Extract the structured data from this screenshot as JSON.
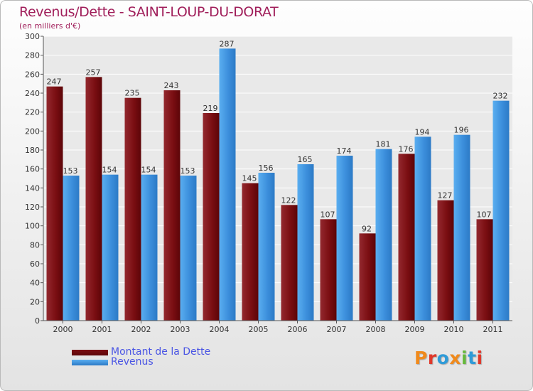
{
  "title": "Revenus/Dette - SAINT-LOUP-DU-DORAT",
  "subtitle": "(en milliers d'€)",
  "logo": {
    "text": "Proxiti",
    "colors": [
      "#f08a1c",
      "#e0382a",
      "#2f9bd8",
      "#f08a1c",
      "#65b93b",
      "#2f9bd8",
      "#e0382a"
    ]
  },
  "colors": {
    "dette": "#7b0e12",
    "revenus": "#3c8fdc",
    "title": "#a01e5a",
    "legend_text": "#4a55e4"
  },
  "chart_data": {
    "type": "bar",
    "categories": [
      "2000",
      "2001",
      "2002",
      "2003",
      "2004",
      "2005",
      "2006",
      "2007",
      "2008",
      "2009",
      "2010",
      "2011"
    ],
    "series": [
      {
        "name": "Montant de la Dette",
        "values": [
          247,
          257,
          235,
          243,
          219,
          145,
          122,
          107,
          92,
          176,
          127,
          107
        ]
      },
      {
        "name": "Revenus",
        "values": [
          153,
          154,
          154,
          153,
          287,
          156,
          165,
          174,
          181,
          194,
          196,
          232
        ]
      }
    ],
    "ylim": [
      0,
      300
    ],
    "yticks": [
      0,
      20,
      40,
      60,
      80,
      100,
      120,
      140,
      160,
      180,
      200,
      220,
      240,
      260,
      280,
      300
    ],
    "grid": true,
    "legend_position": "bottom-left"
  }
}
